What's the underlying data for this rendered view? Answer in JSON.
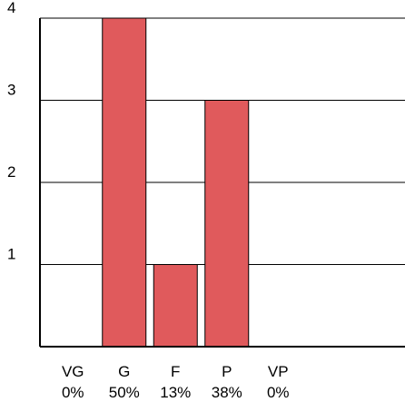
{
  "chart_data": {
    "type": "bar",
    "categories": [
      "VG",
      "G",
      "F",
      "P",
      "VP"
    ],
    "values": [
      0,
      4,
      1,
      3,
      0
    ],
    "percent_labels": [
      "0%",
      "50%",
      "13%",
      "38%",
      "0%"
    ],
    "yticks": [
      "1",
      "2",
      "3",
      "4"
    ],
    "ylim": [
      0,
      4
    ],
    "grid": "horizontal",
    "bar_color": "#e05a5c"
  }
}
